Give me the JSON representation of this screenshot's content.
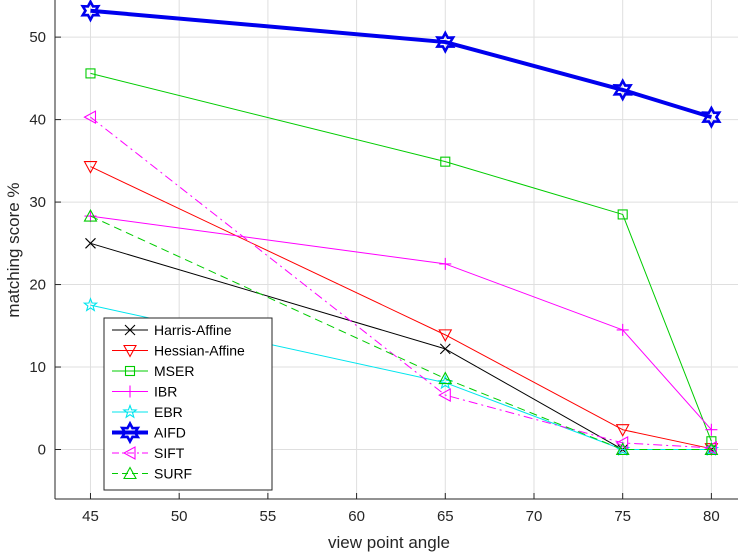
{
  "chart_data": {
    "type": "line",
    "title": "",
    "xlabel": "view point angle",
    "ylabel": "matching score %",
    "x": [
      45,
      65,
      75,
      80
    ],
    "xlim": [
      43,
      81.5
    ],
    "ylim": [
      -6,
      54.5
    ],
    "xticks": [
      "45",
      "50",
      "55",
      "60",
      "65",
      "70",
      "75",
      "80"
    ],
    "yticks": [
      "0",
      "10",
      "20",
      "30",
      "40",
      "50"
    ],
    "grid": true,
    "legend_position": "bottom-left",
    "series": [
      {
        "name": "Harris-Affine",
        "values": [
          25.0,
          12.2,
          0.0,
          0.0
        ],
        "color": "#000000",
        "marker": "x",
        "dash": "solid",
        "width": 1
      },
      {
        "name": "Hessian-Affine",
        "values": [
          34.3,
          13.9,
          2.4,
          0.1
        ],
        "color": "#ff0000",
        "marker": "triangle-down",
        "dash": "solid",
        "width": 1
      },
      {
        "name": "MSER",
        "values": [
          45.6,
          34.9,
          28.5,
          1.0
        ],
        "color": "#00cc00",
        "marker": "square",
        "dash": "solid",
        "width": 1
      },
      {
        "name": "IBR",
        "values": [
          28.3,
          22.5,
          14.5,
          2.4
        ],
        "color": "#ff00ff",
        "marker": "plus",
        "dash": "solid",
        "width": 1
      },
      {
        "name": "EBR",
        "values": [
          17.5,
          8.1,
          0.0,
          0.0
        ],
        "color": "#00e5ee",
        "marker": "star",
        "dash": "solid",
        "width": 1
      },
      {
        "name": "AIFD",
        "values": [
          53.2,
          49.4,
          43.6,
          40.3
        ],
        "color": "#0000ee",
        "marker": "hexagram",
        "dash": "solid",
        "width": 4
      },
      {
        "name": "SIFT",
        "values": [
          40.3,
          6.6,
          0.8,
          0.2
        ],
        "color": "#ff00ff",
        "marker": "triangle-left",
        "dash": "dashdot",
        "width": 1
      },
      {
        "name": "SURF",
        "values": [
          28.3,
          8.6,
          0.0,
          0.0
        ],
        "color": "#00cc00",
        "marker": "triangle-up",
        "dash": "dashed",
        "width": 1
      }
    ]
  }
}
